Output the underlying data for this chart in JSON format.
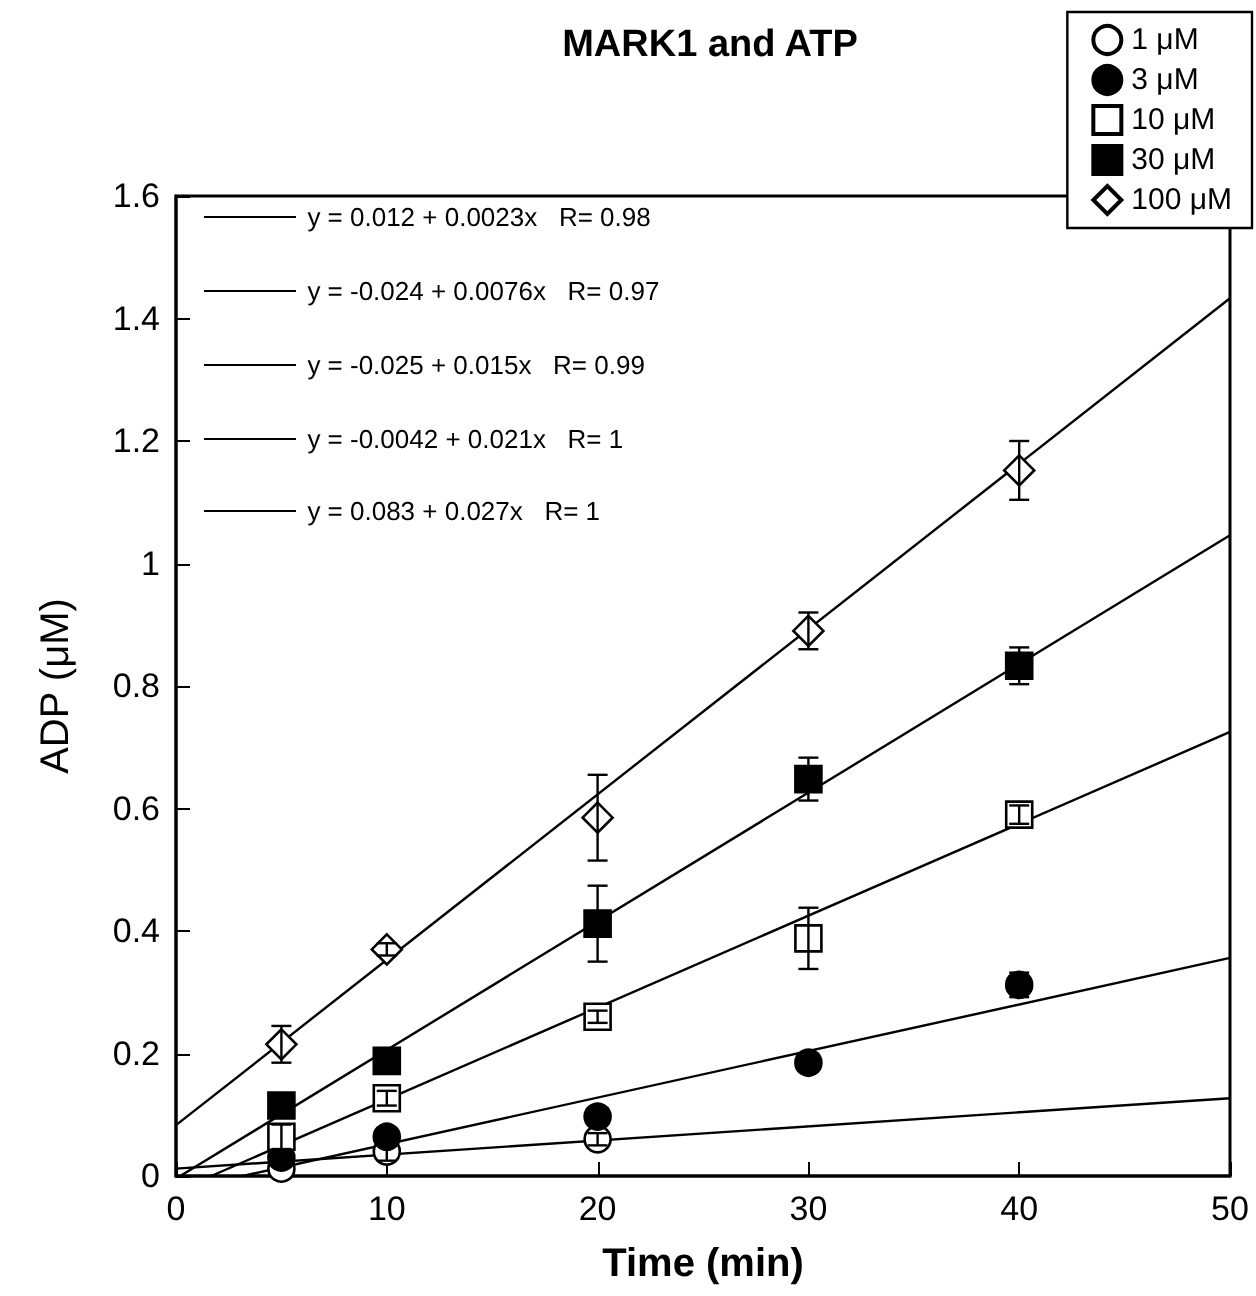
{
  "chart_data": {
    "type": "scatter",
    "title": "MARK1 and ATP",
    "xlabel": "Time (min)",
    "ylabel": "ADP (μM)",
    "xlim": [
      0,
      50
    ],
    "xticks": [
      0,
      10,
      20,
      30,
      40,
      50
    ],
    "ylim": [
      0,
      1.6
    ],
    "yticks": [
      0,
      0.2,
      0.4,
      0.6,
      0.8,
      1,
      1.2,
      1.4,
      1.6
    ],
    "grid": false,
    "legend": "top right",
    "annotations": [
      "y = 0.012 + 0.0023x   R= 0.98",
      "y = -0.024 + 0.0076x   R= 0.97",
      "y = -0.025 + 0.015x   R= 0.99",
      "y = -0.0042 + 0.021x   R= 1",
      "y = 0.083 + 0.027x   R= 1"
    ],
    "series": [
      {
        "name": "1 μM",
        "color": "#ffffff",
        "marker": "circle",
        "x": [
          5,
          10,
          20
        ],
        "values": [
          0.012,
          0.04,
          0.06
        ],
        "errors": [
          null,
          0.015,
          0.01
        ]
      },
      {
        "name": "3 μM",
        "color": "#000000",
        "marker": "circle",
        "x": [
          5,
          10,
          20,
          30,
          40
        ],
        "values": [
          0.03,
          0.064,
          0.097,
          0.185,
          0.312
        ],
        "errors": [
          0.01,
          0.01,
          null,
          0.01,
          0.02
        ]
      },
      {
        "name": "10 μM",
        "color": "#ffffff",
        "marker": "square",
        "x": [
          5,
          10,
          20,
          30,
          40
        ],
        "values": [
          0.064,
          0.127,
          0.26,
          0.388,
          0.59
        ],
        "errors": [
          0.02,
          0.012,
          0.01,
          0.05,
          0.015
        ]
      },
      {
        "name": "30 μM",
        "color": "#000000",
        "marker": "square",
        "x": [
          5,
          10,
          20,
          30,
          40
        ],
        "values": [
          0.115,
          0.188,
          0.412,
          0.648,
          0.833
        ],
        "errors": [
          null,
          null,
          0.062,
          0.035,
          0.03
        ]
      },
      {
        "name": "100 μM",
        "color": "#ffffff",
        "marker": "diamond",
        "x": [
          5,
          10,
          20,
          30,
          40
        ],
        "values": [
          0.215,
          0.37,
          0.585,
          0.89,
          1.152
        ],
        "errors": [
          0.03,
          0.01,
          0.07,
          0.03,
          0.048
        ]
      },
      {
        "type": "line",
        "color": "#000000",
        "marker": "none",
        "x": [
          0,
          50
        ],
        "values": [
          0.012,
          0.127
        ]
      },
      {
        "type": "line",
        "color": "#000000",
        "marker": "none",
        "x": [
          3.16,
          50
        ],
        "values": [
          0,
          0.356
        ]
      },
      {
        "type": "line",
        "color": "#000000",
        "marker": "none",
        "x": [
          1.67,
          50
        ],
        "values": [
          0,
          0.725
        ]
      },
      {
        "type": "line",
        "color": "#000000",
        "marker": "none",
        "x": [
          0.2,
          50
        ],
        "values": [
          0,
          1.046
        ]
      },
      {
        "type": "line",
        "color": "#000000",
        "marker": "none",
        "x": [
          0,
          50
        ],
        "values": [
          0.083,
          1.433
        ]
      }
    ]
  }
}
